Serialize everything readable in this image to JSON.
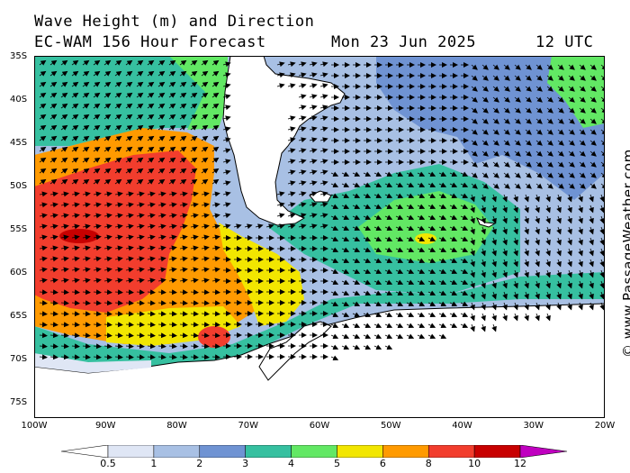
{
  "title_line1": "Wave Height (m) and Direction",
  "title_line2_model": "EC-WAM 156 Hour Forecast",
  "title_line2_date": "Mon 23 Jun 2025",
  "title_line2_time": "12 UTC",
  "watermark": "© www.PassageWeather.com",
  "lat_labels": [
    "35S",
    "40S",
    "45S",
    "50S",
    "55S",
    "60S",
    "65S",
    "70S",
    "75S"
  ],
  "lon_labels": [
    "100W",
    "90W",
    "80W",
    "70W",
    "60W",
    "50W",
    "40W",
    "30W",
    "20W"
  ],
  "colorbar": {
    "labels": [
      "0.5",
      "1",
      "2",
      "3",
      "4",
      "5",
      "6",
      "8",
      "10",
      "12"
    ],
    "colors": [
      "#dfe6f5",
      "#a8c0e4",
      "#6f93d3",
      "#36c0a0",
      "#62e864",
      "#f2e600",
      "#ff9a00",
      "#f23d2d",
      "#c80000",
      "#c000c0"
    ]
  },
  "map": {
    "land_color": "#ffffff",
    "ocean_low_color": "#dfe6f5"
  }
}
